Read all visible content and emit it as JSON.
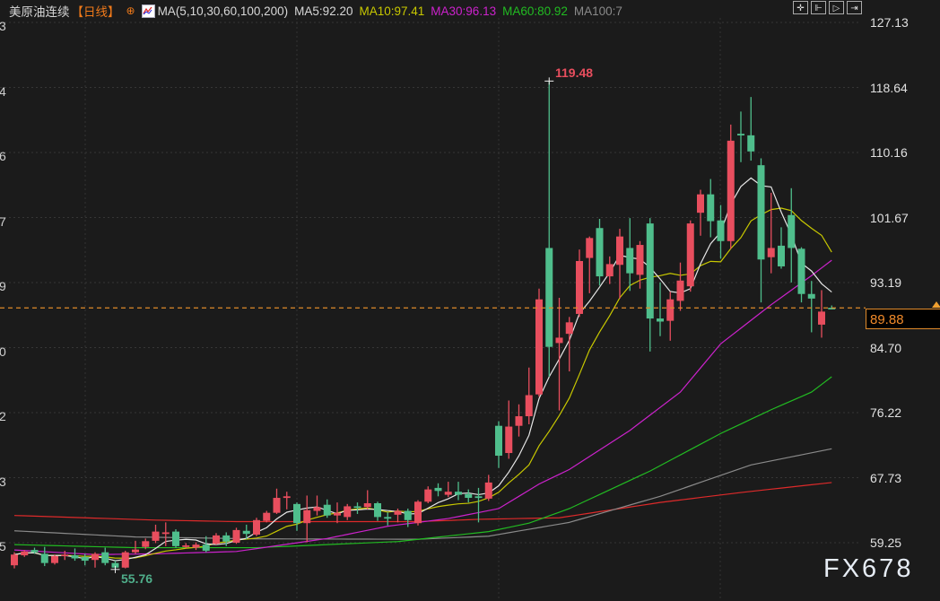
{
  "header": {
    "instrument": "美原油连续",
    "period": "【日线】",
    "add_icon": "circle-plus-icon",
    "ma_icon": "indicator-chart-icon",
    "ma_params": "MA(5,10,30,60,100,200)",
    "ma5": "MA5:92.20",
    "ma10": "MA10:97.41",
    "ma30": "MA30:96.13",
    "ma60": "MA60:80.92",
    "ma100": "MA100:7"
  },
  "toolbar": {
    "icons": [
      "crosshair-icon",
      "zoom-range-icon",
      "play-range-icon",
      "exit-icon"
    ],
    "glyphs": [
      "✛",
      "⊩",
      "▷",
      "⇥"
    ]
  },
  "colors": {
    "background": "#1b1b1b",
    "up": "#e84e5e",
    "down": "#4fbe8c",
    "ma5": "#e6e6e6",
    "ma10": "#c8c800",
    "ma30": "#cc22cc",
    "ma60": "#22bb22",
    "ma100": "#8a8a8a",
    "ma200": "#dd2a2a",
    "last_price": "#f08a2a"
  },
  "left_axis_labels": [
    "3",
    "4",
    "6",
    "7",
    "9",
    "0",
    "2",
    "3",
    "5"
  ],
  "last_price_label": "89.88",
  "watermark": "FX678",
  "chart_data": {
    "type": "candlestick",
    "title": "",
    "ylim": [
      59.25,
      127.13
    ],
    "y_ticks": [
      "127.13",
      "118.64",
      "110.16",
      "101.67",
      "93.19",
      "84.70",
      "76.22",
      "67.73",
      "59.25"
    ],
    "y_tick_values": [
      127.13,
      118.64,
      110.16,
      101.67,
      93.19,
      84.7,
      76.22,
      67.73,
      59.25
    ],
    "grid": true,
    "convention": "red = up, green = down",
    "last_price": 89.88,
    "max_annotation": {
      "label": "119.48",
      "value": 119.48,
      "index": 53
    },
    "min_annotation": {
      "label": "55.76",
      "value": 55.76,
      "index": 10
    },
    "candles_ohlc": [
      [
        56.3,
        58.0,
        55.9,
        57.7
      ],
      [
        57.6,
        58.3,
        57.4,
        58.1
      ],
      [
        58.3,
        58.6,
        57.8,
        58.0
      ],
      [
        57.8,
        58.7,
        56.2,
        56.6
      ],
      [
        56.6,
        57.7,
        56.4,
        57.5
      ],
      [
        57.5,
        58.2,
        57.0,
        57.7
      ],
      [
        57.6,
        58.5,
        56.9,
        57.2
      ],
      [
        57.4,
        57.8,
        56.3,
        56.9
      ],
      [
        57.0,
        58.0,
        56.0,
        57.8
      ],
      [
        58.0,
        58.6,
        56.3,
        56.6
      ],
      [
        56.6,
        56.9,
        55.76,
        56.0
      ],
      [
        56.0,
        58.2,
        55.9,
        58.0
      ],
      [
        58.0,
        59.5,
        57.8,
        58.35
      ],
      [
        58.7,
        59.8,
        58.4,
        59.45
      ],
      [
        59.5,
        61.6,
        59.2,
        60.7
      ],
      [
        60.5,
        61.9,
        58.8,
        60.6
      ],
      [
        60.7,
        61.0,
        58.6,
        58.8
      ],
      [
        58.7,
        59.2,
        58.5,
        58.9
      ],
      [
        58.6,
        59.3,
        58.3,
        59.0
      ],
      [
        59.0,
        60.1,
        58.0,
        58.2
      ],
      [
        59.1,
        60.5,
        59.0,
        60.2
      ],
      [
        60.2,
        60.6,
        58.8,
        59.4
      ],
      [
        59.25,
        61.2,
        59.1,
        60.9
      ],
      [
        60.8,
        61.6,
        59.7,
        60.4
      ],
      [
        60.3,
        62.5,
        60.1,
        62.2
      ],
      [
        62.1,
        63.4,
        61.9,
        63.15
      ],
      [
        63.15,
        66.3,
        63.0,
        65.1
      ],
      [
        65.2,
        65.9,
        63.6,
        65.3
      ],
      [
        64.3,
        64.5,
        60.8,
        61.8
      ],
      [
        61.8,
        65.4,
        59.3,
        63.5
      ],
      [
        63.4,
        65.4,
        62.8,
        63.9
      ],
      [
        64.2,
        64.9,
        62.5,
        62.8
      ],
      [
        62.8,
        64.5,
        61.8,
        63.15
      ],
      [
        62.6,
        64.3,
        62.2,
        64.0
      ],
      [
        64.0,
        64.5,
        63.0,
        63.8
      ],
      [
        63.9,
        66.1,
        63.6,
        64.4
      ],
      [
        64.4,
        64.6,
        62.1,
        62.6
      ],
      [
        62.6,
        63.2,
        61.5,
        62.4
      ],
      [
        62.9,
        63.7,
        61.9,
        63.4
      ],
      [
        63.4,
        63.7,
        61.3,
        62.2
      ],
      [
        61.8,
        64.8,
        61.5,
        64.6
      ],
      [
        64.6,
        66.6,
        64.4,
        66.2
      ],
      [
        66.4,
        67.0,
        65.3,
        66.0
      ],
      [
        65.5,
        67.2,
        65.2,
        65.9
      ],
      [
        65.9,
        67.2,
        64.8,
        65.5
      ],
      [
        65.6,
        66.2,
        64.5,
        65.1
      ],
      [
        65.3,
        66.4,
        61.9,
        65.1
      ],
      [
        65.0,
        68.1,
        64.7,
        67.1
      ],
      [
        74.5,
        75.1,
        69.0,
        70.6
      ],
      [
        70.95,
        77.8,
        70.2,
        74.4
      ],
      [
        74.5,
        77.3,
        73.1,
        75.75
      ],
      [
        75.75,
        82.1,
        74.7,
        78.5
      ],
      [
        78.6,
        92.4,
        78.3,
        91.0
      ],
      [
        97.7,
        119.48,
        80.9,
        84.8
      ],
      [
        85.3,
        91.2,
        76.5,
        86.0
      ],
      [
        86.5,
        88.7,
        81.6,
        88.0
      ],
      [
        89.1,
        97.5,
        88.7,
        96.0
      ],
      [
        96.4,
        99.2,
        91.8,
        99.0
      ],
      [
        100.3,
        101.5,
        92.8,
        94.0
      ],
      [
        94.0,
        96.6,
        93.0,
        95.6
      ],
      [
        95.5,
        100.2,
        91.1,
        99.2
      ],
      [
        97.7,
        101.6,
        92.1,
        94.4
      ],
      [
        94.2,
        98.6,
        92.4,
        98.1
      ],
      [
        100.9,
        101.6,
        84.2,
        88.5
      ],
      [
        88.5,
        93.2,
        86.2,
        88.1
      ],
      [
        88.2,
        92.0,
        85.6,
        91.0
      ],
      [
        90.8,
        95.8,
        89.5,
        93.45
      ],
      [
        92.7,
        101.3,
        92.0,
        100.9
      ],
      [
        102.3,
        105.3,
        99.3,
        104.7
      ],
      [
        104.7,
        106.7,
        99.1,
        101.2
      ],
      [
        101.3,
        103.3,
        96.3,
        98.6
      ],
      [
        98.6,
        113.8,
        97.6,
        111.7
      ],
      [
        112.6,
        115.5,
        108.9,
        112.4
      ],
      [
        112.4,
        117.4,
        109.1,
        110.3
      ],
      [
        108.5,
        109.4,
        90.6,
        96.2
      ],
      [
        96.5,
        104.9,
        94.4,
        97.7
      ],
      [
        98.0,
        100.4,
        95.0,
        95.3
      ],
      [
        102.0,
        105.5,
        93.2,
        97.7
      ],
      [
        97.6,
        97.8,
        90.6,
        91.7
      ],
      [
        91.7,
        93.4,
        86.7,
        91.1
      ],
      [
        87.7,
        92.2,
        86.0,
        89.4
      ],
      [
        89.9,
        90.2,
        89.7,
        89.88
      ]
    ],
    "moving_averages": {
      "ma5": {
        "period": 5
      },
      "ma10": {
        "period": 10
      },
      "ma30": {
        "index": [
          0,
          8,
          14,
          22,
          31,
          37,
          43,
          48,
          52,
          55,
          61,
          66,
          70,
          75,
          79,
          81
        ],
        "values": [
          58.3,
          57.7,
          57.8,
          58.1,
          59.8,
          61.4,
          62.4,
          63.7,
          66.9,
          68.8,
          73.9,
          78.9,
          85.2,
          90.3,
          94.1,
          96.1
        ]
      },
      "ma60": {
        "index": [
          0,
          12,
          24,
          38,
          47,
          51,
          55,
          63,
          70,
          75,
          79,
          81
        ],
        "values": [
          59.0,
          58.6,
          58.6,
          59.4,
          60.7,
          61.8,
          63.7,
          68.6,
          73.5,
          76.6,
          78.9,
          80.9
        ]
      },
      "ma100": {
        "index": [
          0,
          12,
          24,
          40,
          47,
          55,
          64,
          73,
          81
        ],
        "values": [
          60.8,
          60.0,
          59.75,
          59.7,
          60.1,
          61.9,
          65.3,
          69.4,
          71.5
        ]
      },
      "ma200": {
        "index": [
          0,
          14,
          22,
          40,
          46,
          54,
          64,
          72,
          81
        ],
        "values": [
          62.8,
          62.2,
          62.0,
          62.0,
          62.3,
          62.5,
          64.5,
          65.8,
          67.1
        ]
      }
    }
  }
}
